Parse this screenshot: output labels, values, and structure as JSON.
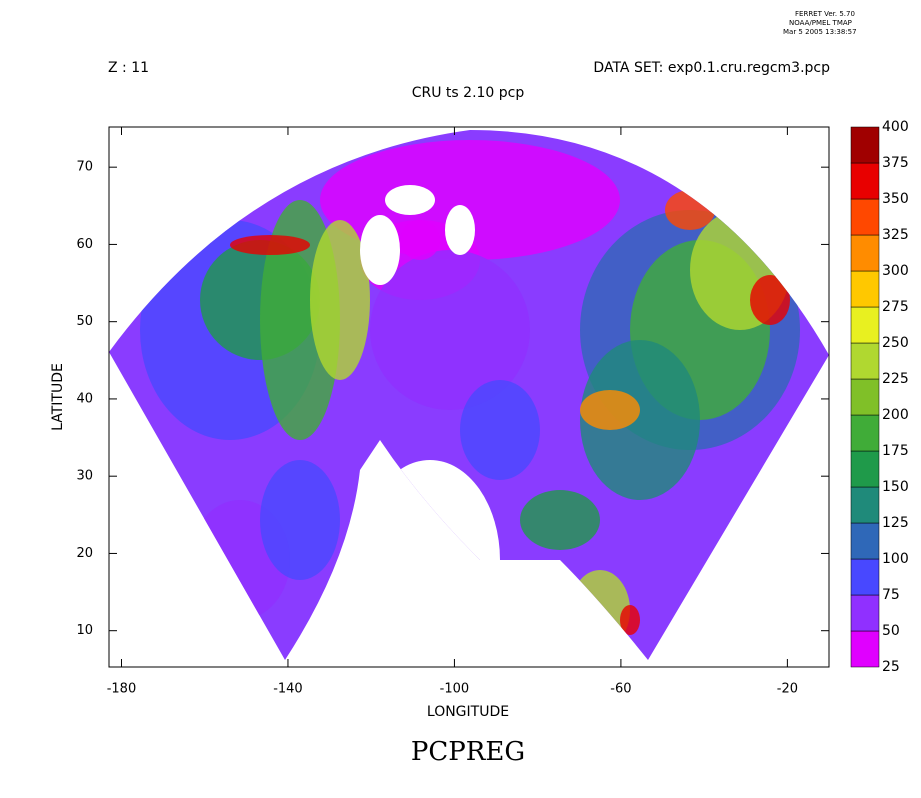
{
  "header": {
    "ferret_lines": [
      "FERRET Ver. 5.70",
      "NOAA/PMEL TMAP",
      "Mar  5 2005 13:38:57"
    ],
    "z_label": "Z : 11",
    "dataset": "DATA SET: exp0.1.cru.regcm3.pcp",
    "subtitle": "CRU ts 2.10 pcp"
  },
  "chart_data": {
    "type": "map",
    "title": "PCPREG",
    "xlabel": "LONGITUDE",
    "ylabel": "LATITUDE",
    "xlim": [
      -183,
      -10
    ],
    "ylim": [
      5.3,
      75.2
    ],
    "xticks": [
      -180,
      -140,
      -100,
      -60,
      -20
    ],
    "yticks": [
      10,
      20,
      30,
      40,
      50,
      60,
      70
    ],
    "colorbar": {
      "levels": [
        25,
        50,
        75,
        100,
        125,
        150,
        175,
        200,
        225,
        250,
        275,
        300,
        325,
        350,
        375,
        400
      ],
      "colors": [
        "#e000ff",
        "#9030ff",
        "#4848ff",
        "#2f68b8",
        "#1f8a7a",
        "#1f9a4a",
        "#40ac38",
        "#80c028",
        "#b0d830",
        "#e8f020",
        "#ffc800",
        "#ff8c00",
        "#ff4800",
        "#e80000",
        "#a00000"
      ]
    }
  }
}
